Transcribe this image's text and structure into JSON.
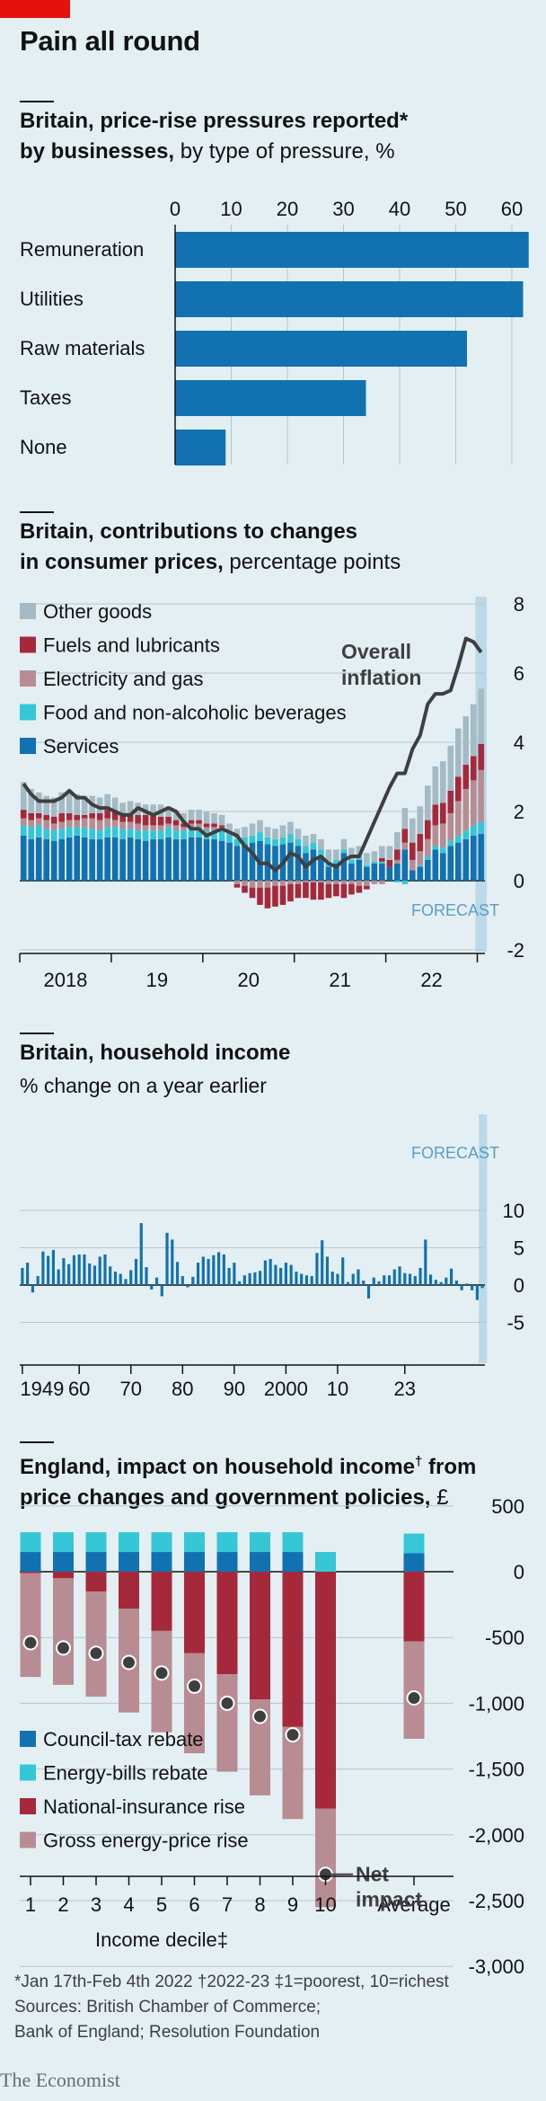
{
  "header": {
    "title": "Pain all round"
  },
  "charts": [
    {
      "title_bold": "Britain, price-rise pressures reported*",
      "title_bold2": "by businesses,",
      "title_rest": " by type of pressure, %"
    },
    {
      "title_bold": "Britain, contributions to changes",
      "title_bold2": "in consumer prices,",
      "title_rest": " percentage points"
    },
    {
      "title_bold": "Britain, household income",
      "subtitle": "% change on a year earlier"
    },
    {
      "title_bold": "England, impact on household income",
      "title_sup": "†",
      "title_bold_after": " from",
      "title_bold2": "price changes and government policies,",
      "title_rest": " £"
    }
  ],
  "chart_data": [
    {
      "type": "bar",
      "orientation": "horizontal",
      "categories": [
        "Remuneration",
        "Utilities",
        "Raw materials",
        "Taxes",
        "None"
      ],
      "values": [
        63,
        62,
        52,
        34,
        9
      ],
      "xticks": [
        0,
        10,
        20,
        30,
        40,
        50,
        60
      ],
      "xlim": [
        0,
        63
      ],
      "color": "#1171b1"
    },
    {
      "type": "bar",
      "stacked": true,
      "series": [
        {
          "name": "Other goods",
          "color": "#a4bbc6"
        },
        {
          "name": "Fuels and lubricants",
          "color": "#a5293a"
        },
        {
          "name": "Electricity and gas",
          "color": "#b88c93"
        },
        {
          "name": "Food and non-alcoholic beverages",
          "color": "#36c7d6"
        },
        {
          "name": "Services",
          "color": "#1171b1"
        }
      ],
      "line_label": "Overall inflation",
      "line_label_lines": [
        "Overall",
        "inflation"
      ],
      "line_color": "#3f3f3f",
      "forecast_label": "FORECAST",
      "yticks": [
        8,
        6,
        4,
        2,
        0,
        -2
      ],
      "ylim": [
        -2,
        8
      ],
      "xtick_labels": [
        "2018",
        "19",
        "20",
        "21",
        "22"
      ],
      "period": "monthly, Jan 2017 - Apr 2022 plus forecast",
      "services": [
        1.3,
        1.2,
        1.25,
        1.2,
        1.15,
        1.2,
        1.25,
        1.3,
        1.25,
        1.2,
        1.2,
        1.25,
        1.25,
        1.2,
        1.25,
        1.2,
        1.15,
        1.2,
        1.2,
        1.25,
        1.2,
        1.2,
        1.25,
        1.25,
        1.2,
        1.2,
        1.15,
        1.1,
        1.0,
        1.05,
        1.1,
        1.15,
        1.05,
        1.0,
        1.05,
        1.1,
        1.0,
        0.8,
        0.9,
        0.7,
        0.4,
        0.5,
        0.8,
        0.5,
        0.6,
        0.4,
        0.5,
        0.5,
        0.4,
        0.5,
        0.9,
        0.3,
        0.4,
        0.6,
        0.9,
        0.8,
        1.0,
        1.1,
        1.2,
        1.3,
        1.35,
        1.4,
        1.5,
        1.6,
        1.7,
        1.75,
        1.8,
        1.85,
        1.9,
        1.9
      ],
      "food": [
        0.3,
        0.35,
        0.35,
        0.3,
        0.3,
        0.3,
        0.3,
        0.25,
        0.3,
        0.3,
        0.25,
        0.3,
        0.3,
        0.3,
        0.25,
        0.25,
        0.3,
        0.25,
        0.25,
        0.3,
        0.25,
        0.25,
        0.3,
        0.3,
        0.25,
        0.25,
        0.3,
        0.25,
        0.2,
        0.2,
        0.2,
        0.25,
        0.2,
        0.2,
        0.2,
        0.25,
        0.2,
        0.2,
        0.2,
        0.2,
        0.15,
        0.1,
        0.1,
        0.1,
        0.1,
        0.05,
        0.05,
        0.05,
        0.0,
        -0.05,
        -0.1,
        0.0,
        0.05,
        0.1,
        0.1,
        0.15,
        0.15,
        0.2,
        0.25,
        0.3,
        0.35,
        0.4,
        0.4,
        0.45,
        0.5,
        0.5,
        0.55,
        0.55,
        0.55,
        0.55
      ],
      "electricity": [
        0.2,
        0.2,
        0.2,
        0.25,
        0.2,
        0.2,
        0.2,
        0.2,
        0.25,
        0.3,
        0.3,
        0.25,
        0.2,
        0.2,
        0.2,
        0.2,
        0.15,
        0.15,
        0.15,
        0.1,
        0.15,
        0.1,
        0.1,
        0.1,
        0.1,
        0.1,
        0.1,
        0.0,
        -0.1,
        -0.15,
        -0.2,
        -0.2,
        -0.2,
        -0.15,
        -0.15,
        -0.1,
        -0.1,
        -0.05,
        -0.05,
        -0.05,
        -0.1,
        -0.1,
        -0.1,
        -0.1,
        -0.15,
        -0.15,
        -0.1,
        -0.1,
        0.0,
        0.1,
        0.2,
        0.3,
        0.4,
        0.5,
        0.6,
        0.7,
        0.8,
        1.0,
        1.2,
        1.3,
        1.5,
        1.7,
        1.9,
        2.0,
        2.0,
        2.0
      ],
      "fuels": [
        0.25,
        0.2,
        0.15,
        0.15,
        0.2,
        0.25,
        0.2,
        0.15,
        0.1,
        0.15,
        0.2,
        0.25,
        0.25,
        0.2,
        0.2,
        0.25,
        0.3,
        0.3,
        0.25,
        0.2,
        0.15,
        0.1,
        0.1,
        0.1,
        0.1,
        0.1,
        0.05,
        0.0,
        -0.1,
        -0.2,
        -0.3,
        -0.5,
        -0.6,
        -0.6,
        -0.55,
        -0.5,
        -0.4,
        -0.45,
        -0.5,
        -0.5,
        -0.4,
        -0.35,
        -0.4,
        -0.3,
        -0.2,
        -0.1,
        0.0,
        0.1,
        0.2,
        0.3,
        0.4,
        0.5,
        0.5,
        0.55,
        0.6,
        0.6,
        0.65,
        0.7,
        0.7,
        0.7,
        0.75,
        0.7,
        0.65,
        0.65
      ],
      "other": [
        0.8,
        0.7,
        0.6,
        0.55,
        0.55,
        0.6,
        0.65,
        0.6,
        0.55,
        0.5,
        0.45,
        0.45,
        0.4,
        0.35,
        0.4,
        0.35,
        0.3,
        0.3,
        0.35,
        0.3,
        0.25,
        0.3,
        0.3,
        0.3,
        0.35,
        0.3,
        0.3,
        0.3,
        0.3,
        0.3,
        0.35,
        0.35,
        0.3,
        0.3,
        0.35,
        0.35,
        0.3,
        0.3,
        0.25,
        0.3,
        0.35,
        0.3,
        0.3,
        0.35,
        0.3,
        0.35,
        0.3,
        0.35,
        0.4,
        0.5,
        0.6,
        0.7,
        0.8,
        1.0,
        1.1,
        1.2,
        1.3,
        1.4,
        1.4,
        1.5,
        1.6,
        1.6,
        1.7,
        1.8,
        1.7,
        1.6
      ],
      "overall": [
        2.8,
        2.5,
        2.3,
        2.3,
        2.3,
        2.4,
        2.6,
        2.4,
        2.4,
        2.2,
        2.1,
        2.1,
        2.0,
        1.9,
        1.9,
        2.1,
        2.0,
        1.9,
        2.0,
        2.1,
        2.0,
        1.7,
        1.5,
        1.5,
        1.3,
        1.4,
        1.5,
        1.4,
        1.3,
        1.0,
        0.8,
        0.5,
        0.5,
        0.3,
        0.5,
        0.8,
        0.7,
        0.4,
        0.6,
        0.7,
        0.5,
        0.4,
        0.6,
        0.7,
        0.7,
        1.2,
        1.7,
        2.2,
        2.7,
        3.1,
        3.1,
        3.8,
        4.2,
        5.1,
        5.4,
        5.4,
        5.5,
        6.2,
        7.0,
        6.9,
        6.6
      ]
    },
    {
      "type": "bar",
      "yticks": [
        10,
        5,
        0,
        -5
      ],
      "ylim": [
        -5,
        10
      ],
      "xtick_labels": [
        "1949",
        "60",
        "70",
        "80",
        "90",
        "2000",
        "10",
        "23"
      ],
      "forecast_label": "FORECAST",
      "color": "#1171b1",
      "values": [
        2.3,
        3.0,
        -1.0,
        1.2,
        4.5,
        3.9,
        4.7,
        2.1,
        3.6,
        2.8,
        4.0,
        4.1,
        4.1,
        2.9,
        2.6,
        3.8,
        4.1,
        2.5,
        1.8,
        1.5,
        0.8,
        2.0,
        3.5,
        8.3,
        2.4,
        -0.6,
        1.0,
        -1.5,
        7.0,
        6.1,
        3.1,
        1.2,
        -0.3,
        1.1,
        3.0,
        3.8,
        3.5,
        4.0,
        4.4,
        4.1,
        2.3,
        3.0,
        0.5,
        1.3,
        1.6,
        1.7,
        1.9,
        3.3,
        3.5,
        2.7,
        2.3,
        3.0,
        2.7,
        1.8,
        1.5,
        1.3,
        1.2,
        4.3,
        6.0,
        3.8,
        1.8,
        1.5,
        3.7,
        0.4,
        1.5,
        2.1,
        0.6,
        -1.8,
        1.0,
        0.5,
        1.3,
        1.3,
        2.1,
        2.5,
        1.6,
        1.5,
        1.2,
        2.3,
        6.1,
        1.4,
        0.7,
        0.4,
        1.0,
        2.2,
        0.6,
        -0.7,
        0.2,
        -0.7,
        -2.0,
        -0.4
      ]
    },
    {
      "type": "bar",
      "stacked": true,
      "categories": [
        "1",
        "2",
        "3",
        "4",
        "5",
        "6",
        "7",
        "8",
        "9",
        "10",
        "Average"
      ],
      "xlabel": "Income decile‡",
      "yticks": [
        500,
        0,
        -500,
        -1000,
        -1500,
        -2000,
        -2500,
        -3000
      ],
      "ytick_labels": [
        "500",
        "0",
        "-500",
        "-1,000",
        "-1,500",
        "-2,000",
        "-2,500",
        "-3,000"
      ],
      "ylim": [
        -3000,
        500
      ],
      "series": [
        {
          "name": "Council-tax rebate",
          "color": "#1171b1",
          "values": [
            150,
            150,
            150,
            150,
            150,
            150,
            150,
            150,
            150,
            0,
            140
          ]
        },
        {
          "name": "Energy-bills rebate",
          "color": "#36c7d6",
          "values": [
            150,
            150,
            150,
            150,
            150,
            150,
            150,
            150,
            150,
            150,
            150
          ]
        },
        {
          "name": "National-insurance rise",
          "color": "#a5293a",
          "values": [
            -10,
            -50,
            -150,
            -280,
            -450,
            -620,
            -780,
            -970,
            -1180,
            -1800,
            -530
          ]
        },
        {
          "name": "Gross energy-price rise",
          "color": "#b88c93",
          "values": [
            -790,
            -810,
            -800,
            -790,
            -770,
            -760,
            -740,
            -730,
            -700,
            -750,
            -740
          ]
        }
      ],
      "net_impact": [
        -540,
        -580,
        -620,
        -690,
        -770,
        -870,
        -1000,
        -1100,
        -1240,
        -2300,
        -960
      ],
      "net_label": "Net impact",
      "net_label_lines": [
        "Net",
        "impact"
      ]
    }
  ],
  "footnotes": {
    "line1": "*Jan 17th-Feb 4th 2022   †2022-23   ‡1=poorest, 10=richest",
    "line2": "Sources: British Chamber of Commerce;",
    "line3": "Bank of England; Resolution Foundation"
  },
  "brand": "The Economist"
}
